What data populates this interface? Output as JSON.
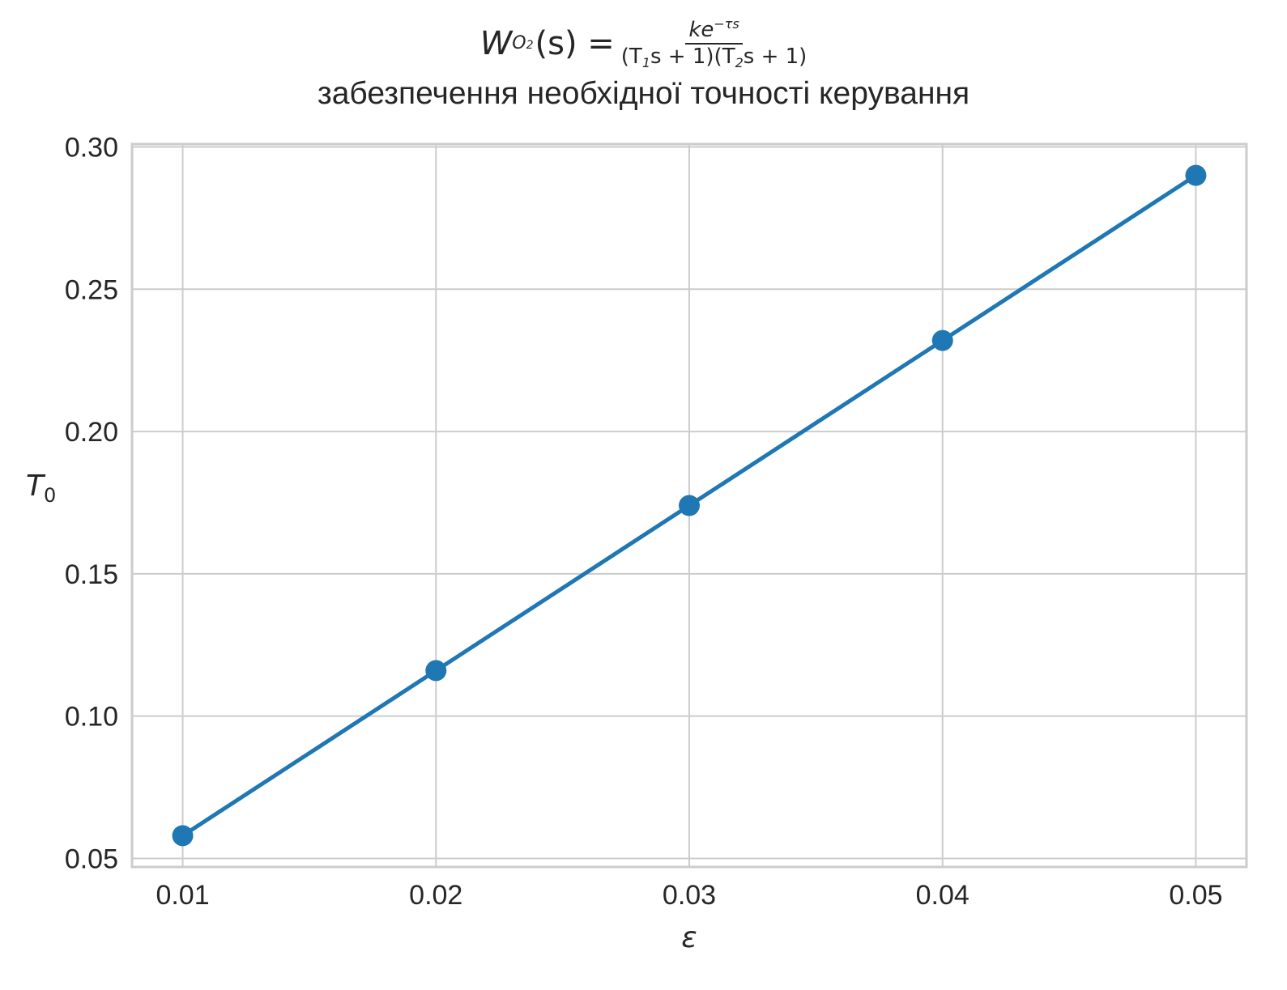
{
  "chart_data": {
    "type": "line",
    "title_formula": {
      "lhs_symbol": "W",
      "lhs_subscript": "O",
      "lhs_subsubscript": "2",
      "lhs_arg": "(s) =",
      "numerator": "ke",
      "numerator_exp": "−τs",
      "denominator_parts": [
        "(T",
        "1",
        "s + 1)(T",
        "2",
        "s + 1)"
      ]
    },
    "subtitle": "забезпечення необхідної точності керування",
    "xlabel": "ε",
    "ylabel": "T",
    "ylabel_subscript": "0",
    "x": [
      0.01,
      0.02,
      0.03,
      0.04,
      0.05
    ],
    "series": [
      {
        "values": [
          0.058,
          0.116,
          0.174,
          0.232,
          0.29
        ]
      }
    ],
    "xlim": [
      0.008,
      0.052
    ],
    "ylim": [
      0.047,
      0.301
    ],
    "xticks": [
      0.01,
      0.02,
      0.03,
      0.04,
      0.05
    ],
    "xtick_labels": [
      "0.01",
      "0.02",
      "0.03",
      "0.04",
      "0.05"
    ],
    "yticks": [
      0.05,
      0.1,
      0.15,
      0.2,
      0.25,
      0.3
    ],
    "ytick_labels": [
      "0.05",
      "0.10",
      "0.15",
      "0.20",
      "0.25",
      "0.30"
    ],
    "grid": true,
    "colors": {
      "line": "#1f77b4",
      "grid": "#cccccc",
      "frame": "#cccccc",
      "text": "#262626"
    }
  }
}
